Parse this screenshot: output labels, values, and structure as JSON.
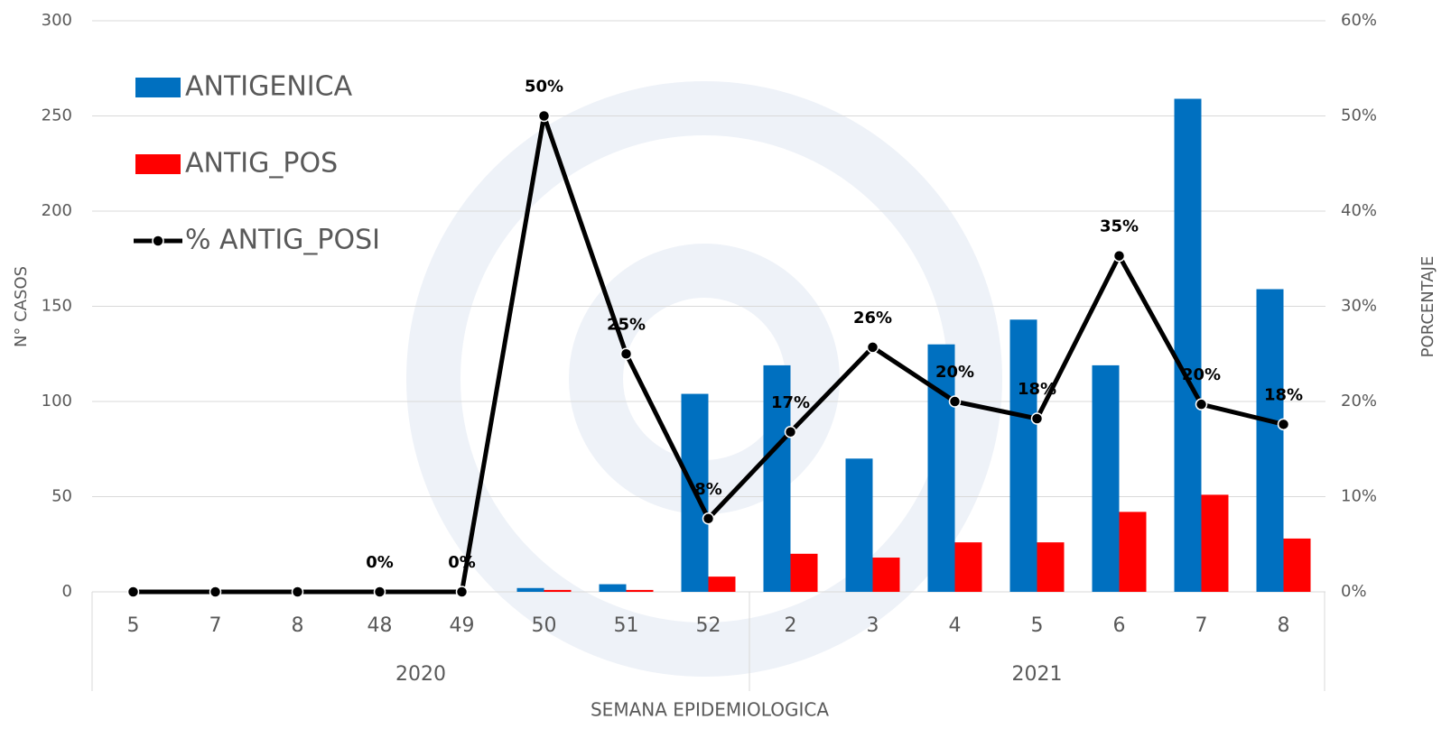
{
  "chart_data": {
    "type": "bar",
    "categories": [
      "5",
      "7",
      "8",
      "48",
      "49",
      "50",
      "51",
      "52",
      "2",
      "3",
      "4",
      "5",
      "6",
      "7",
      "8"
    ],
    "groups": [
      "2020",
      "2021"
    ],
    "xlabel": "SEMANA EPIDEMIOLOGICA",
    "ylabel": "N° CASOS",
    "y2label": "PORCENTAJE",
    "ylim": [
      0,
      300
    ],
    "yticks": [
      0,
      50,
      100,
      150,
      200,
      250,
      300
    ],
    "y2lim": [
      0,
      60
    ],
    "y2ticks": [
      {
        "value": 0,
        "label": "0%"
      },
      {
        "value": 10,
        "label": "10%"
      },
      {
        "value": 20,
        "label": "20%"
      },
      {
        "value": 30,
        "label": "30%"
      },
      {
        "value": 40,
        "label": "40%"
      },
      {
        "value": 50,
        "label": "50%"
      },
      {
        "value": 60,
        "label": "60%"
      }
    ],
    "grid": true,
    "legend": "top-left",
    "series": [
      {
        "name": "ANTIGENICA",
        "color": "#0070c0",
        "values": [
          0,
          0,
          0,
          0,
          0,
          2,
          4,
          104,
          119,
          70,
          130,
          143,
          119,
          259,
          159
        ]
      },
      {
        "name": "ANTIG_POS",
        "color": "#ff0000",
        "values": [
          0,
          0,
          0,
          0,
          0,
          1,
          1,
          8,
          20,
          18,
          26,
          26,
          42,
          51,
          28
        ]
      },
      {
        "name": "% ANTIG_POSI",
        "color": "#000000",
        "type": "line",
        "axis": "y2",
        "values": [
          0,
          0,
          0,
          0,
          0,
          50,
          25,
          7.7,
          16.8,
          25.7,
          20,
          18.2,
          35.3,
          19.7,
          17.6
        ],
        "value_labels": [
          null,
          null,
          null,
          "0%",
          "0%",
          "50%",
          "25%",
          "8%",
          "17%",
          "26%",
          "20%",
          "18%",
          "35%",
          "20%",
          "18%"
        ]
      }
    ]
  }
}
